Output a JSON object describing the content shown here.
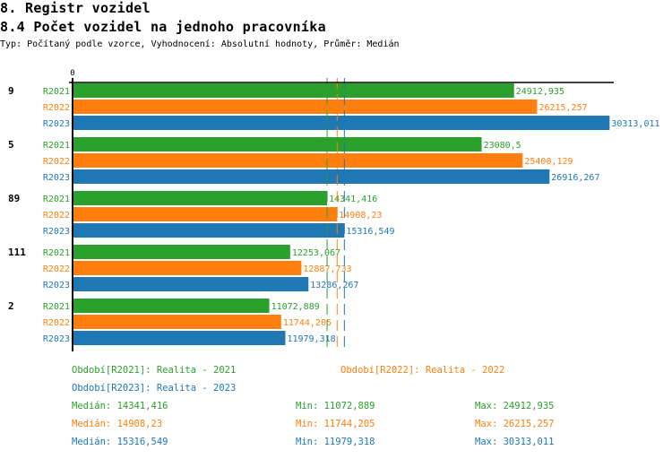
{
  "header": {
    "section_title": "8. Registr vozidel",
    "chart_title": "8.4 Počet vozidel na jednoho pracovníka",
    "subtitle": "Typ: Počítaný podle vzorce, Vyhodnocení: Absolutní hodnoty, Průměr: Medián"
  },
  "chart_data": {
    "type": "bar",
    "orientation": "horizontal",
    "title": "8.4 Počet vozidel na jednoho pracovníka",
    "xlabel": "",
    "ylabel": "",
    "x_tick_labels": [
      "0"
    ],
    "xlim": [
      0,
      30600
    ],
    "grid": false,
    "categories": [
      "9",
      "5",
      "89",
      "111",
      "2"
    ],
    "series": [
      {
        "name": "R2021",
        "color": "#2ca02c",
        "values": [
          24912.935,
          23080.5,
          14341.416,
          12253.067,
          11072.889
        ],
        "labels": [
          "24912,935",
          "23080,5",
          "14341,416",
          "12253,067",
          "11072,889"
        ]
      },
      {
        "name": "R2022",
        "color": "#ff7f0e",
        "values": [
          26215.257,
          25400.129,
          14908.23,
          12887.733,
          11744.205
        ],
        "labels": [
          "26215,257",
          "25400,129",
          "14908,23",
          "12887,733",
          "11744,205"
        ]
      },
      {
        "name": "R2023",
        "color": "#1f77b4",
        "values": [
          30313.011,
          26916.267,
          15316.549,
          13286.267,
          11979.318
        ],
        "labels": [
          "30313,011",
          "26916,267",
          "15316,549",
          "13286,267",
          "11979,318"
        ]
      }
    ],
    "reference_lines": [
      {
        "name": "median-R2021",
        "value": 14341.416,
        "color": "#2ca02c",
        "style": "dashed"
      },
      {
        "name": "median-R2022",
        "value": 14908.23,
        "color": "#ff7f0e",
        "style": "dashed"
      },
      {
        "name": "median-R2023",
        "value": 15316.549,
        "color": "#1f77b4",
        "style": "dashed"
      }
    ],
    "legend": [
      {
        "text": "Období[R2021]: Realita - 2021",
        "color": "#2ca02c"
      },
      {
        "text": "Období[R2022]: Realita - 2022",
        "color": "#ff7f0e"
      },
      {
        "text": "Období[R2023]: Realita - 2023",
        "color": "#1f77b4"
      }
    ],
    "legend_position": "bottom",
    "stats": [
      {
        "median": "Medián: 14341,416",
        "min": "Min: 11072,889",
        "max": "Max: 24912,935",
        "color": "#2ca02c"
      },
      {
        "median": "Medián: 14908,23",
        "min": "Min: 11744,205",
        "max": "Max: 26215,257",
        "color": "#ff7f0e"
      },
      {
        "median": "Medián: 15316,549",
        "min": "Min: 11979,318",
        "max": "Max: 30313,011",
        "color": "#1f77b4"
      }
    ]
  }
}
